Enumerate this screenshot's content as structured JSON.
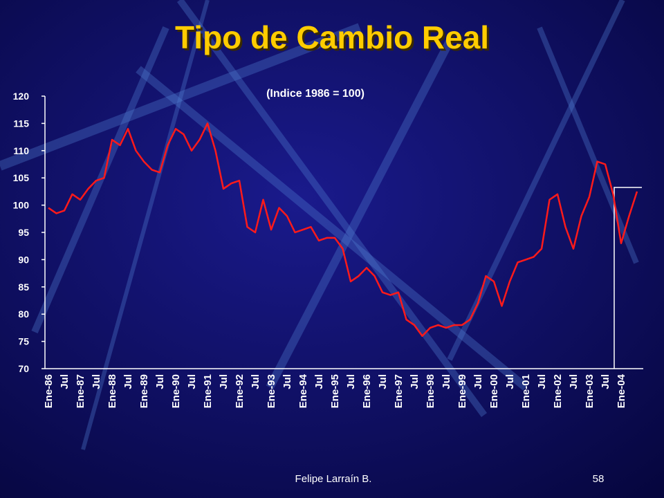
{
  "chart_data": {
    "type": "line",
    "title": "Tipo de Cambio Real",
    "subtitle": "(Indice 1986 = 100)",
    "categories": [
      "Ene-86",
      null,
      "Jul",
      null,
      "Ene-87",
      null,
      "Jul",
      null,
      "Ene-88",
      null,
      "Jul",
      null,
      "Ene-89",
      null,
      "Jul",
      null,
      "Ene-90",
      null,
      "Jul",
      null,
      "Ene-91",
      null,
      "Jul",
      null,
      "Ene-92",
      null,
      "Jul",
      null,
      "Ene-93",
      null,
      "Jul",
      null,
      "Ene-94",
      null,
      "Jul",
      null,
      "Ene-95",
      null,
      "Jul",
      null,
      "Ene-96",
      null,
      "Jul",
      null,
      "Ene-97",
      null,
      "Jul",
      null,
      "Ene-98",
      null,
      "Jul",
      null,
      "Ene-99",
      null,
      "Jul",
      null,
      "Ene-00",
      null,
      "Jul",
      null,
      "Ene-01",
      null,
      "Jul",
      null,
      "Ene-02",
      null,
      "Jul",
      null,
      "Ene-03",
      null,
      "Jul",
      null,
      "Ene-04",
      null,
      null
    ],
    "series": [
      {
        "color": "#ff1a1a",
        "values": [
          99.5,
          98.5,
          99,
          102,
          101,
          103,
          104.5,
          105,
          112,
          111,
          114,
          110,
          108,
          106.5,
          106,
          111,
          114,
          113,
          110,
          112,
          115,
          110,
          103,
          104,
          104.5,
          96,
          95,
          101,
          95.5,
          99.5,
          98,
          95,
          95.5,
          96,
          93.5,
          94,
          94,
          92,
          86,
          87,
          88.5,
          87,
          84,
          83.5,
          84,
          79,
          78,
          76,
          77.5,
          78,
          77.5,
          78,
          78,
          79,
          82,
          87,
          86,
          81.5,
          86,
          89.5,
          90,
          90.5,
          92,
          101,
          102,
          96,
          92,
          98,
          101.5,
          108,
          107.5,
          102,
          93,
          98,
          102.5
        ]
      }
    ],
    "ylim": [
      70,
      120
    ],
    "yticks": [
      70,
      75,
      80,
      85,
      90,
      95,
      100,
      105,
      110,
      115,
      120
    ]
  },
  "footer": {
    "author": "Felipe Larraín B.",
    "page": "58"
  }
}
